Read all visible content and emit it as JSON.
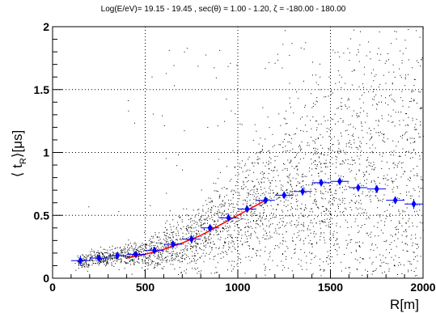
{
  "chart_data": {
    "type": "scatter",
    "title": "Log(E/eV)= 19.15 - 19.45 , sec(θ) = 1.00 - 1.20, ζ = -180.00 - 180.00",
    "xlabel": "R[m]",
    "ylabel": "⟨ t",
    "ylabel_sub": "R",
    "ylabel_tail": "⟩[μs]",
    "xlim": [
      0,
      2000
    ],
    "ylim": [
      0,
      2
    ],
    "x_ticks": [
      0,
      500,
      1000,
      1500,
      2000
    ],
    "y_ticks": [
      0,
      0.5,
      1,
      1.5,
      2
    ],
    "x_tick_labels": [
      "0",
      "500",
      "1000",
      "1500",
      "2000"
    ],
    "y_tick_labels": [
      "0",
      "0.5",
      "1",
      "1.5",
      "2"
    ],
    "grid": true,
    "colors": {
      "scatter": "#000000",
      "profile": "#0000ff",
      "fit": "#ff0000"
    },
    "series": [
      {
        "kind": "profile",
        "x": [
          150,
          250,
          350,
          450,
          550,
          650,
          750,
          850,
          950,
          1050,
          1150,
          1250,
          1350,
          1450,
          1550,
          1650,
          1750,
          1850,
          1950
        ],
        "y": [
          0.14,
          0.16,
          0.18,
          0.19,
          0.22,
          0.27,
          0.31,
          0.4,
          0.48,
          0.55,
          0.62,
          0.66,
          0.69,
          0.76,
          0.77,
          0.72,
          0.71,
          0.62,
          0.59
        ],
        "yerr": [
          0.04,
          0.02,
          0.02,
          0.01,
          0.01,
          0.01,
          0.01,
          0.01,
          0.01,
          0.02,
          0.02,
          0.02,
          0.02,
          0.03,
          0.03,
          0.03,
          0.03,
          0.03,
          0.04
        ],
        "xerr": 50
      },
      {
        "kind": "fit",
        "x": [
          400,
          500,
          600,
          700,
          800,
          900,
          1000,
          1100,
          1150
        ],
        "y": [
          0.16,
          0.19,
          0.23,
          0.28,
          0.34,
          0.42,
          0.5,
          0.58,
          0.62
        ]
      }
    ],
    "scatter_density_note": "dense black scatter of individual points across the full range"
  }
}
